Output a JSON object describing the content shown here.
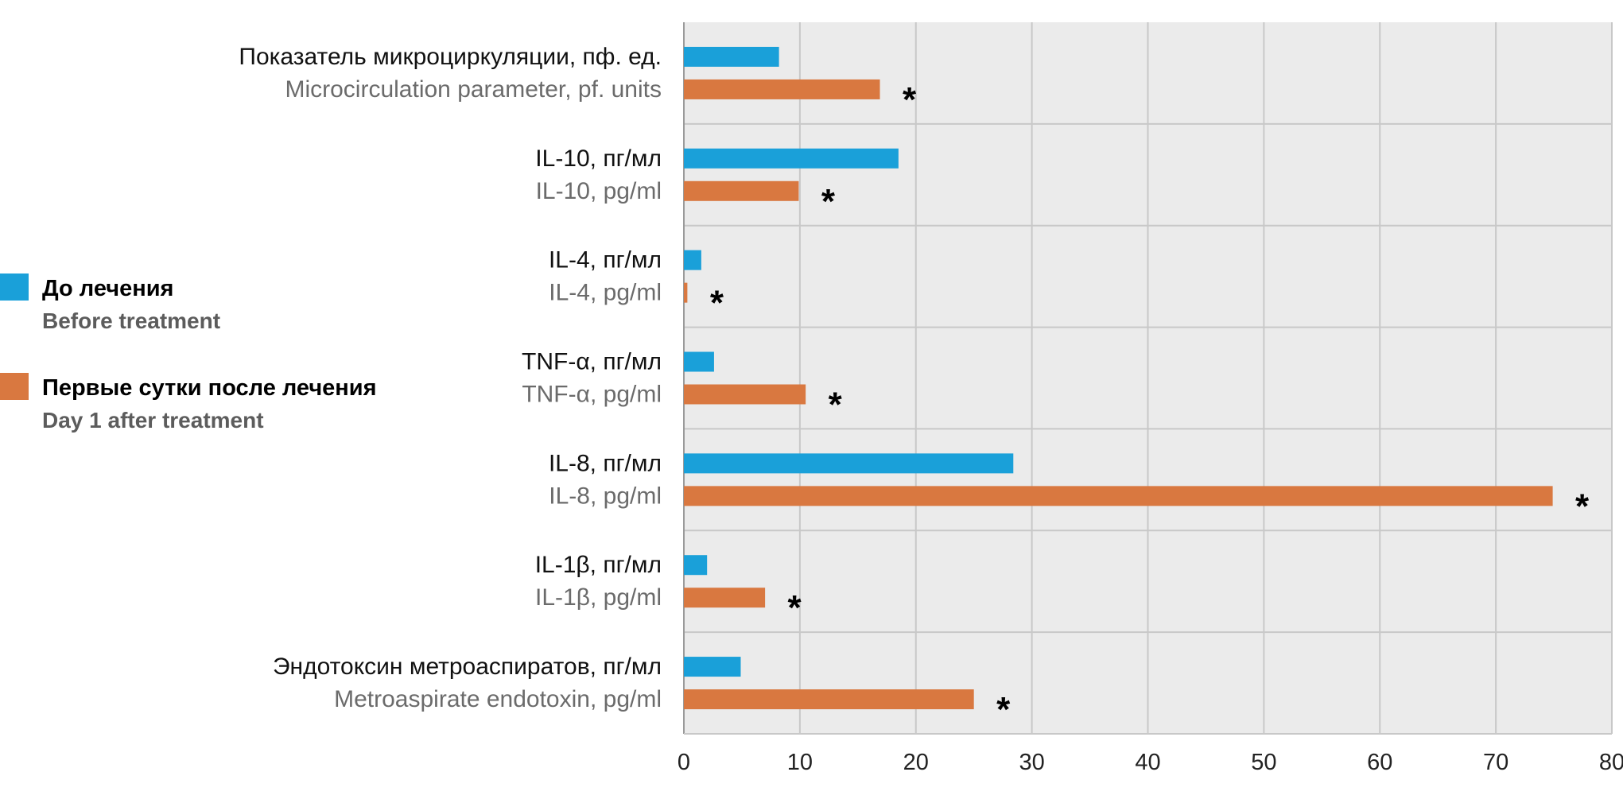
{
  "chart_data": {
    "type": "bar",
    "orientation": "horizontal",
    "categories": [
      {
        "ru": "Показатель микроциркуляции, пф. ед.",
        "en": "Microcirculation parameter, pf. units"
      },
      {
        "ru": "IL-10, пг/мл",
        "en": "IL-10, pg/ml"
      },
      {
        "ru": "IL-4, пг/мл",
        "en": "IL-4, pg/ml"
      },
      {
        "ru": "TNF-α, пг/мл",
        "en": "TNF-α, pg/ml"
      },
      {
        "ru": "IL-8, пг/мл",
        "en": "IL-8, pg/ml"
      },
      {
        "ru": "IL-1β, пг/мл",
        "en": "IL-1β, pg/ml"
      },
      {
        "ru": "Эндотоксин метроаспиратов, пг/мл",
        "en": "Metroaspirate endotoxin, pg/ml"
      }
    ],
    "series": [
      {
        "name_ru": "До лечения",
        "name_en": "Before treatment",
        "color": "#1aa0d9",
        "values": [
          8.2,
          18.5,
          1.5,
          2.6,
          28.4,
          2.0,
          4.9
        ]
      },
      {
        "name_ru": "Первые сутки после лечения",
        "name_en": "Day 1 after treatment",
        "color": "#d97840",
        "values": [
          16.9,
          9.9,
          0.3,
          10.5,
          74.9,
          7.0,
          25.0
        ]
      }
    ],
    "significance_marker": "*",
    "significant": [
      true,
      true,
      true,
      true,
      true,
      true,
      true
    ],
    "xlim": [
      0,
      80
    ],
    "xticks": [
      "0",
      "10",
      "20",
      "30",
      "40",
      "50",
      "60",
      "70",
      "80"
    ],
    "grid": true,
    "plot_background": "#ebebeb",
    "grid_color": "#c8c8c8",
    "legend_position": "left"
  }
}
